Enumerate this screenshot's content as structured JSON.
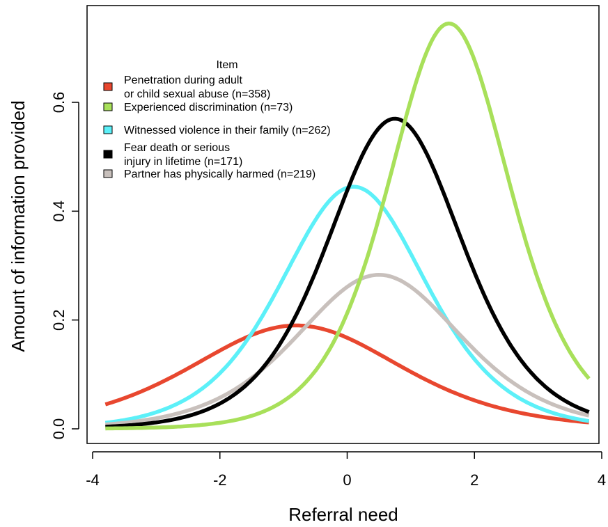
{
  "chart_data": {
    "type": "line",
    "xlabel": "Referral need",
    "ylabel": "Amount of information provided",
    "xlim": [
      -3.8,
      3.8
    ],
    "ylim": [
      0,
      0.75
    ],
    "xticks": [
      "-4",
      "-2",
      "0",
      "2",
      "4"
    ],
    "yticks": [
      "0.0",
      "0.2",
      "0.4",
      "0.6"
    ],
    "legend": {
      "title": "Item",
      "placement": "top-left",
      "entries": [
        {
          "lines": [
            "Penetration during adult",
            "or child sexual abuse (n=358)"
          ],
          "color": "#e8472f"
        },
        {
          "lines": [
            "Experienced discrimination (n=73)"
          ],
          "color": "#a8e05a"
        },
        {
          "lines": [
            "Witnessed violence in their family (n=262)"
          ],
          "color": "#5cf0f8"
        },
        {
          "lines": [
            "Fear death or serious",
            "injury in lifetime (n=171)"
          ],
          "color": "#000000"
        },
        {
          "lines": [
            "Partner has physically harmed (n=219)"
          ],
          "color": "#c8c0bc"
        }
      ]
    },
    "series": [
      {
        "name": "Penetration during adult or child sexual abuse (n=358)",
        "color": "#e8472f",
        "peak_x": -0.8,
        "peak_y": 0.19,
        "x": [
          -3.8,
          -3.0,
          -2.0,
          -1.0,
          -0.5,
          0,
          0.5,
          1.0,
          2.0,
          3.0,
          3.8
        ],
        "y": [
          0.049,
          0.075,
          0.135,
          0.188,
          0.188,
          0.173,
          0.148,
          0.119,
          0.069,
          0.036,
          0.021
        ]
      },
      {
        "name": "Experienced discrimination (n=73)",
        "color": "#a8e05a",
        "peak_x": 1.6,
        "peak_y": 0.745,
        "x": [
          -3.8,
          -3.0,
          -2.0,
          -1.0,
          0,
          0.5,
          1.0,
          1.6,
          2.0,
          3.0,
          3.8
        ],
        "y": [
          0.001,
          0.003,
          0.011,
          0.043,
          0.159,
          0.291,
          0.493,
          0.745,
          0.673,
          0.239,
          0.058
        ]
      },
      {
        "name": "Witnessed violence in their family (n=262)",
        "color": "#5cf0f8",
        "peak_x": 0.1,
        "peak_y": 0.445,
        "x": [
          -3.8,
          -3.0,
          -2.0,
          -1.0,
          -0.5,
          0,
          0.5,
          1.0,
          2.0,
          3.0,
          3.8
        ],
        "y": [
          0.011,
          0.027,
          0.091,
          0.261,
          0.381,
          0.442,
          0.381,
          0.261,
          0.091,
          0.027,
          0.011
        ]
      },
      {
        "name": "Fear death or serious injury in lifetime (n=171)",
        "color": "#000000",
        "peak_x": 0.75,
        "peak_y": 0.57,
        "x": [
          -3.8,
          -3.0,
          -2.0,
          -1.0,
          0,
          0.5,
          0.75,
          1.0,
          2.0,
          3.0,
          3.8
        ],
        "y": [
          0.002,
          0.007,
          0.029,
          0.116,
          0.369,
          0.541,
          0.57,
          0.555,
          0.247,
          0.069,
          0.021
        ]
      },
      {
        "name": "Partner has physically harmed (n=219)",
        "color": "#c8c0bc",
        "peak_x": 0.5,
        "peak_y": 0.283,
        "x": [
          -3.8,
          -3.0,
          -2.0,
          -1.0,
          0,
          0.5,
          1.0,
          2.0,
          3.0,
          3.8
        ],
        "y": [
          0.011,
          0.027,
          0.078,
          0.174,
          0.264,
          0.283,
          0.264,
          0.174,
          0.078,
          0.032
        ]
      }
    ]
  }
}
